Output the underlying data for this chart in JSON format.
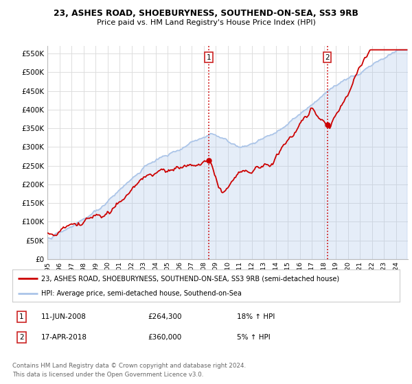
{
  "title1": "23, ASHES ROAD, SHOEBURYNESS, SOUTHEND-ON-SEA, SS3 9RB",
  "title2": "Price paid vs. HM Land Registry's House Price Index (HPI)",
  "ylabel_values": [
    "£0",
    "£50K",
    "£100K",
    "£150K",
    "£200K",
    "£250K",
    "£300K",
    "£350K",
    "£400K",
    "£450K",
    "£500K",
    "£550K"
  ],
  "ytick_values": [
    0,
    50000,
    100000,
    150000,
    200000,
    250000,
    300000,
    350000,
    400000,
    450000,
    500000,
    550000
  ],
  "ylim": [
    0,
    570000
  ],
  "hpi_color": "#aac4e8",
  "price_color": "#cc0000",
  "marker1_year": 2008.44,
  "marker1_price": 264300,
  "marker1_label": "11-JUN-2008",
  "marker1_text": "£264,300",
  "marker1_hpi": "18% ↑ HPI",
  "marker2_year": 2018.29,
  "marker2_price": 360000,
  "marker2_label": "17-APR-2018",
  "marker2_text": "£360,000",
  "marker2_hpi": "5% ↑ HPI",
  "legend_line1": "23, ASHES ROAD, SHOEBURYNESS, SOUTHEND-ON-SEA, SS3 9RB (semi-detached house)",
  "legend_line2": "HPI: Average price, semi-detached house, Southend-on-Sea",
  "footer1": "Contains HM Land Registry data © Crown copyright and database right 2024.",
  "footer2": "This data is licensed under the Open Government Licence v3.0.",
  "vline_color": "#cc0000",
  "grid_color": "#dddddd",
  "bg_color": "#ffffff"
}
